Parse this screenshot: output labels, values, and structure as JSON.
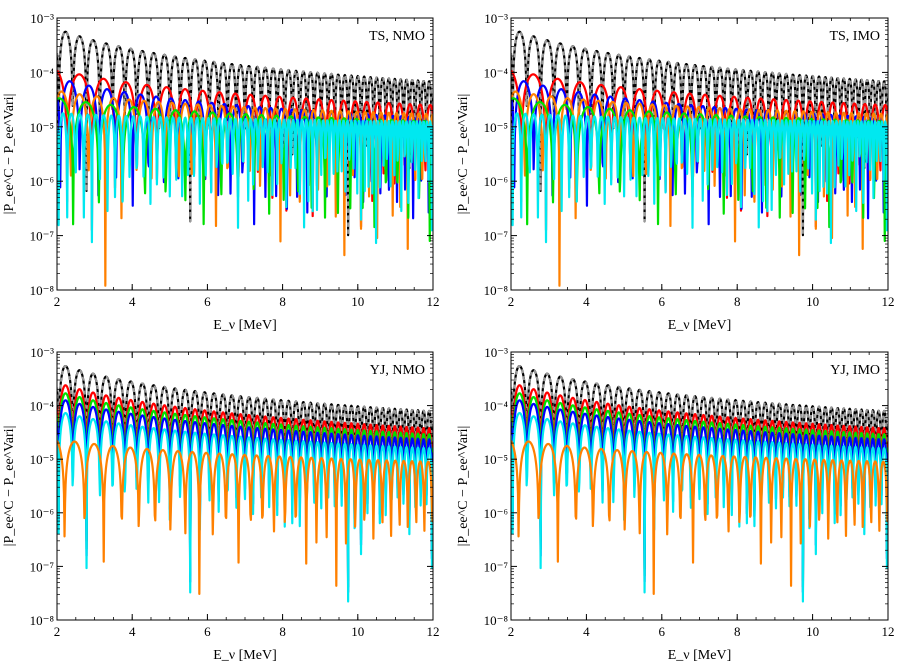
{
  "chart_data": [
    {
      "type": "line",
      "annotation": "TS, NMO",
      "xlabel": "E_ν [MeV]",
      "ylabel": "|P_ee^C − P_ee^Vari|",
      "xlim": [
        2,
        12
      ],
      "ylim": [
        1e-08,
        0.001
      ],
      "yscale": "log",
      "grid": false,
      "xticks": [
        2,
        4,
        6,
        8,
        10,
        12
      ],
      "ytick_labels": [
        "10⁻⁸",
        "10⁻⁷",
        "10⁻⁶",
        "10⁻⁵",
        "10⁻⁴",
        "10⁻³"
      ],
      "series": [
        {
          "color": "#000000",
          "style": "solid",
          "amp": 0.00064,
          "decay": 1.25,
          "freq": 1.8
        },
        {
          "color": "#9a9a9a",
          "style": "dashed",
          "amp": 0.00064,
          "decay": 1.25,
          "freq": 1.8
        },
        {
          "color": "#ff0000",
          "style": "solid",
          "amp": 0.000115,
          "decay": 0.85,
          "freq": 1.0
        },
        {
          "color": "#0000ff",
          "style": "solid",
          "amp": 8e-05,
          "decay": 0.95,
          "freq": 1.3
        },
        {
          "color": "#ff8000",
          "style": "solid",
          "amp": 4.6e-05,
          "decay": 0.55,
          "freq": 1.4
        },
        {
          "color": "#00e000",
          "style": "solid",
          "amp": 3.4e-05,
          "decay": 0.55,
          "freq": 0.95
        },
        {
          "color": "#00e8f0",
          "style": "solid",
          "amp": 1.8e-05,
          "decay": 0.2,
          "freq": 3.0
        }
      ]
    },
    {
      "type": "line",
      "annotation": "TS, IMO",
      "xlabel": "E_ν [MeV]",
      "ylabel": "|P_ee^C − P_ee^Vari|",
      "xlim": [
        2,
        12
      ],
      "ylim": [
        1e-08,
        0.001
      ],
      "yscale": "log",
      "grid": false,
      "xticks": [
        2,
        4,
        6,
        8,
        10,
        12
      ],
      "ytick_labels": [
        "10⁻⁸",
        "10⁻⁷",
        "10⁻⁶",
        "10⁻⁵",
        "10⁻⁴",
        "10⁻³"
      ],
      "series": [
        {
          "color": "#000000",
          "style": "solid",
          "amp": 0.00064,
          "decay": 1.25,
          "freq": 1.8
        },
        {
          "color": "#9a9a9a",
          "style": "dashed",
          "amp": 0.00064,
          "decay": 1.25,
          "freq": 1.8
        },
        {
          "color": "#ff0000",
          "style": "solid",
          "amp": 0.000115,
          "decay": 0.85,
          "freq": 1.0
        },
        {
          "color": "#0000ff",
          "style": "solid",
          "amp": 8e-05,
          "decay": 0.95,
          "freq": 1.3
        },
        {
          "color": "#ff8000",
          "style": "solid",
          "amp": 4.6e-05,
          "decay": 0.55,
          "freq": 1.4
        },
        {
          "color": "#00e000",
          "style": "solid",
          "amp": 3.4e-05,
          "decay": 0.55,
          "freq": 0.95
        },
        {
          "color": "#00e8f0",
          "style": "solid",
          "amp": 1.8e-05,
          "decay": 0.2,
          "freq": 3.0
        }
      ]
    },
    {
      "type": "line",
      "annotation": "YJ, NMO",
      "xlabel": "E_ν [MeV]",
      "ylabel": "|P_ee^C − P_ee^Vari|",
      "xlim": [
        2,
        12
      ],
      "ylim": [
        1e-08,
        0.001
      ],
      "yscale": "log",
      "grid": false,
      "xticks": [
        2,
        4,
        6,
        8,
        10,
        12
      ],
      "ytick_labels": [
        "10⁻⁸",
        "10⁻⁷",
        "10⁻⁶",
        "10⁻⁵",
        "10⁻⁴",
        "10⁻³"
      ],
      "series": [
        {
          "color": "#000000",
          "style": "solid",
          "amp": 0.00062,
          "decay": 1.15,
          "freq": 1.8
        },
        {
          "color": "#9a9a9a",
          "style": "dashed",
          "amp": 0.00062,
          "decay": 1.15,
          "freq": 1.8
        },
        {
          "color": "#ff0000",
          "style": "solid",
          "amp": 0.00027,
          "decay": 1.1,
          "freq": 1.8
        },
        {
          "color": "#00e000",
          "style": "solid",
          "amp": 0.00019,
          "decay": 1.05,
          "freq": 1.8
        },
        {
          "color": "#0000ff",
          "style": "solid",
          "amp": 0.00014,
          "decay": 1.0,
          "freq": 1.8
        },
        {
          "color": "#00e8f0",
          "style": "solid",
          "amp": 8e-05,
          "decay": 0.9,
          "freq": 1.8
        },
        {
          "color": "#ff8000",
          "style": "solid",
          "amp": 2.4e-05,
          "decay": 0.55,
          "freq": 1.25
        }
      ]
    },
    {
      "type": "line",
      "annotation": "YJ, IMO",
      "xlabel": "E_ν [MeV]",
      "ylabel": "|P_ee^C − P_ee^Vari|",
      "xlim": [
        2,
        12
      ],
      "ylim": [
        1e-08,
        0.001
      ],
      "yscale": "log",
      "grid": false,
      "xticks": [
        2,
        4,
        6,
        8,
        10,
        12
      ],
      "ytick_labels": [
        "10⁻⁸",
        "10⁻⁷",
        "10⁻⁶",
        "10⁻⁵",
        "10⁻⁴",
        "10⁻³"
      ],
      "series": [
        {
          "color": "#000000",
          "style": "solid",
          "amp": 0.00062,
          "decay": 1.15,
          "freq": 1.8
        },
        {
          "color": "#9a9a9a",
          "style": "dashed",
          "amp": 0.00062,
          "decay": 1.15,
          "freq": 1.8
        },
        {
          "color": "#ff0000",
          "style": "solid",
          "amp": 0.00027,
          "decay": 1.1,
          "freq": 1.8
        },
        {
          "color": "#00e000",
          "style": "solid",
          "amp": 0.00019,
          "decay": 1.05,
          "freq": 1.8
        },
        {
          "color": "#0000ff",
          "style": "solid",
          "amp": 0.00014,
          "decay": 1.0,
          "freq": 1.8
        },
        {
          "color": "#00e8f0",
          "style": "solid",
          "amp": 8e-05,
          "decay": 0.9,
          "freq": 1.8
        },
        {
          "color": "#ff8000",
          "style": "solid",
          "amp": 2.4e-05,
          "decay": 0.55,
          "freq": 1.25
        }
      ]
    }
  ]
}
